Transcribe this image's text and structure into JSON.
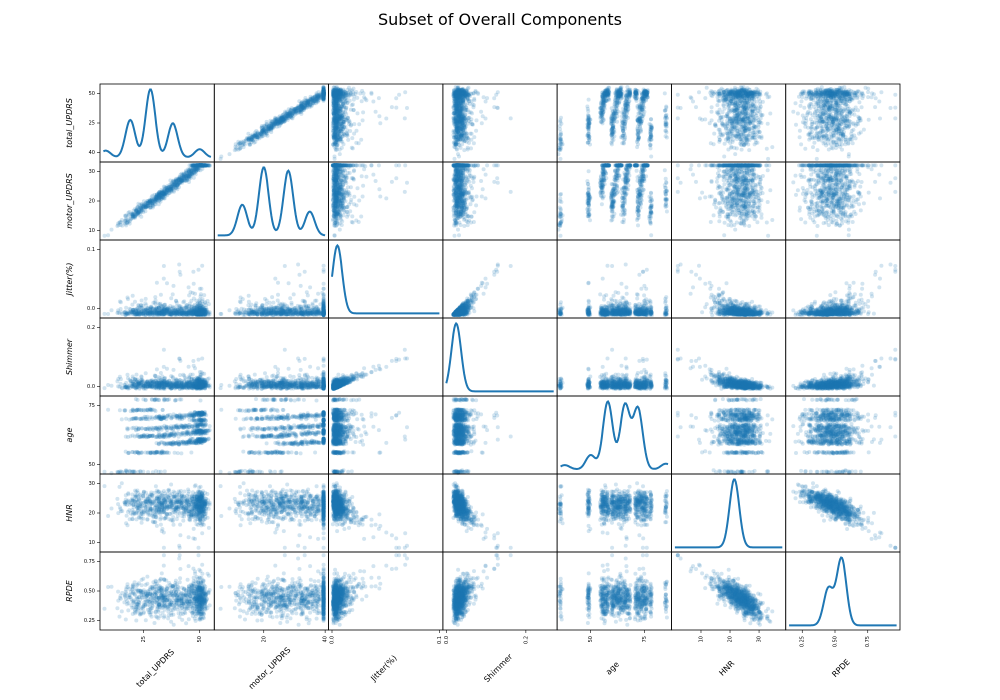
{
  "title": "Subset of Overall Components",
  "colors": {
    "point": "#1f77b4",
    "line": "#1f77b4",
    "frame": "#000000"
  },
  "chart_data": {
    "type": "scatter",
    "subtype": "scatter-matrix",
    "title": "Subset of Overall Components",
    "diagonal": "kde",
    "point_alpha": 0.2,
    "variables": [
      {
        "name": "total_UPDRS",
        "range": [
          7,
          55
        ],
        "ticks": [
          {
            "v": 25,
            "label": "25"
          },
          {
            "v": 50,
            "label": "50"
          }
        ],
        "ytick_labels": [
          "50",
          "25",
          "40"
        ]
      },
      {
        "name": "motor_UPDRS",
        "range": [
          5,
          40
        ],
        "ticks": [
          {
            "v": 20,
            "label": "20"
          },
          {
            "v": 40,
            "label": "40"
          }
        ],
        "ytick_labels": [
          "30",
          "20",
          "10"
        ]
      },
      {
        "name": "Jitter(%)",
        "range": [
          0,
          0.1
        ],
        "ticks": [
          {
            "v": 0,
            "label": "0.0"
          },
          {
            "v": 0.1,
            "label": "0.1"
          }
        ],
        "ytick_labels": [
          "0.1",
          "0.0"
        ]
      },
      {
        "name": "Shimmer",
        "range": [
          0,
          0.27
        ],
        "ticks": [
          {
            "v": 0,
            "label": "0.0"
          },
          {
            "v": 0.2,
            "label": "0.2"
          }
        ],
        "ytick_labels": [
          "0.2",
          "0.0"
        ]
      },
      {
        "name": "age",
        "range": [
          36,
          86
        ],
        "ticks": [
          {
            "v": 50,
            "label": "50"
          },
          {
            "v": 75,
            "label": "75"
          }
        ],
        "ytick_labels": [
          "75",
          "50"
        ]
      },
      {
        "name": "HNR",
        "range": [
          1,
          38
        ],
        "ticks": [
          {
            "v": 10,
            "label": "10"
          },
          {
            "v": 20,
            "label": "20"
          },
          {
            "v": 30,
            "label": "30"
          }
        ],
        "ytick_labels": [
          "30",
          "20",
          "10"
        ]
      },
      {
        "name": "RPDE",
        "range": [
          0.15,
          0.97
        ],
        "ticks": [
          {
            "v": 0.25,
            "label": "0.25"
          },
          {
            "v": 0.5,
            "label": "0.50"
          },
          {
            "v": 0.75,
            "label": "0.75"
          }
        ],
        "ytick_labels": [
          "0.75",
          "0.50",
          "0.25"
        ]
      }
    ],
    "subject_ages": [
      36,
      49,
      55,
      56,
      57,
      58,
      60,
      61,
      62,
      63,
      64,
      65,
      66,
      67,
      68,
      71,
      72,
      73,
      74,
      75,
      76,
      78,
      85
    ],
    "kde_peaks": {
      "total_UPDRS": [
        [
          28,
          1.0
        ],
        [
          19,
          0.55
        ],
        [
          38,
          0.5
        ],
        [
          8,
          0.1
        ],
        [
          50,
          0.12
        ]
      ],
      "motor_UPDRS": [
        [
          20,
          1.0
        ],
        [
          28,
          0.95
        ],
        [
          13,
          0.45
        ],
        [
          35,
          0.35
        ]
      ],
      "Jitter(%)": [
        [
          0.005,
          1.0
        ]
      ],
      "Shimmer": [
        [
          0.025,
          1.0
        ]
      ],
      "age": [
        [
          58,
          0.95
        ],
        [
          66,
          0.9
        ],
        [
          72,
          0.85
        ],
        [
          50,
          0.2
        ],
        [
          38,
          0.06
        ],
        [
          85,
          0.08
        ]
      ],
      "HNR": [
        [
          21.5,
          1.0
        ]
      ],
      "RPDE": [
        [
          0.55,
          1.0
        ],
        [
          0.45,
          0.55
        ]
      ]
    },
    "points_per_panel": 900
  }
}
